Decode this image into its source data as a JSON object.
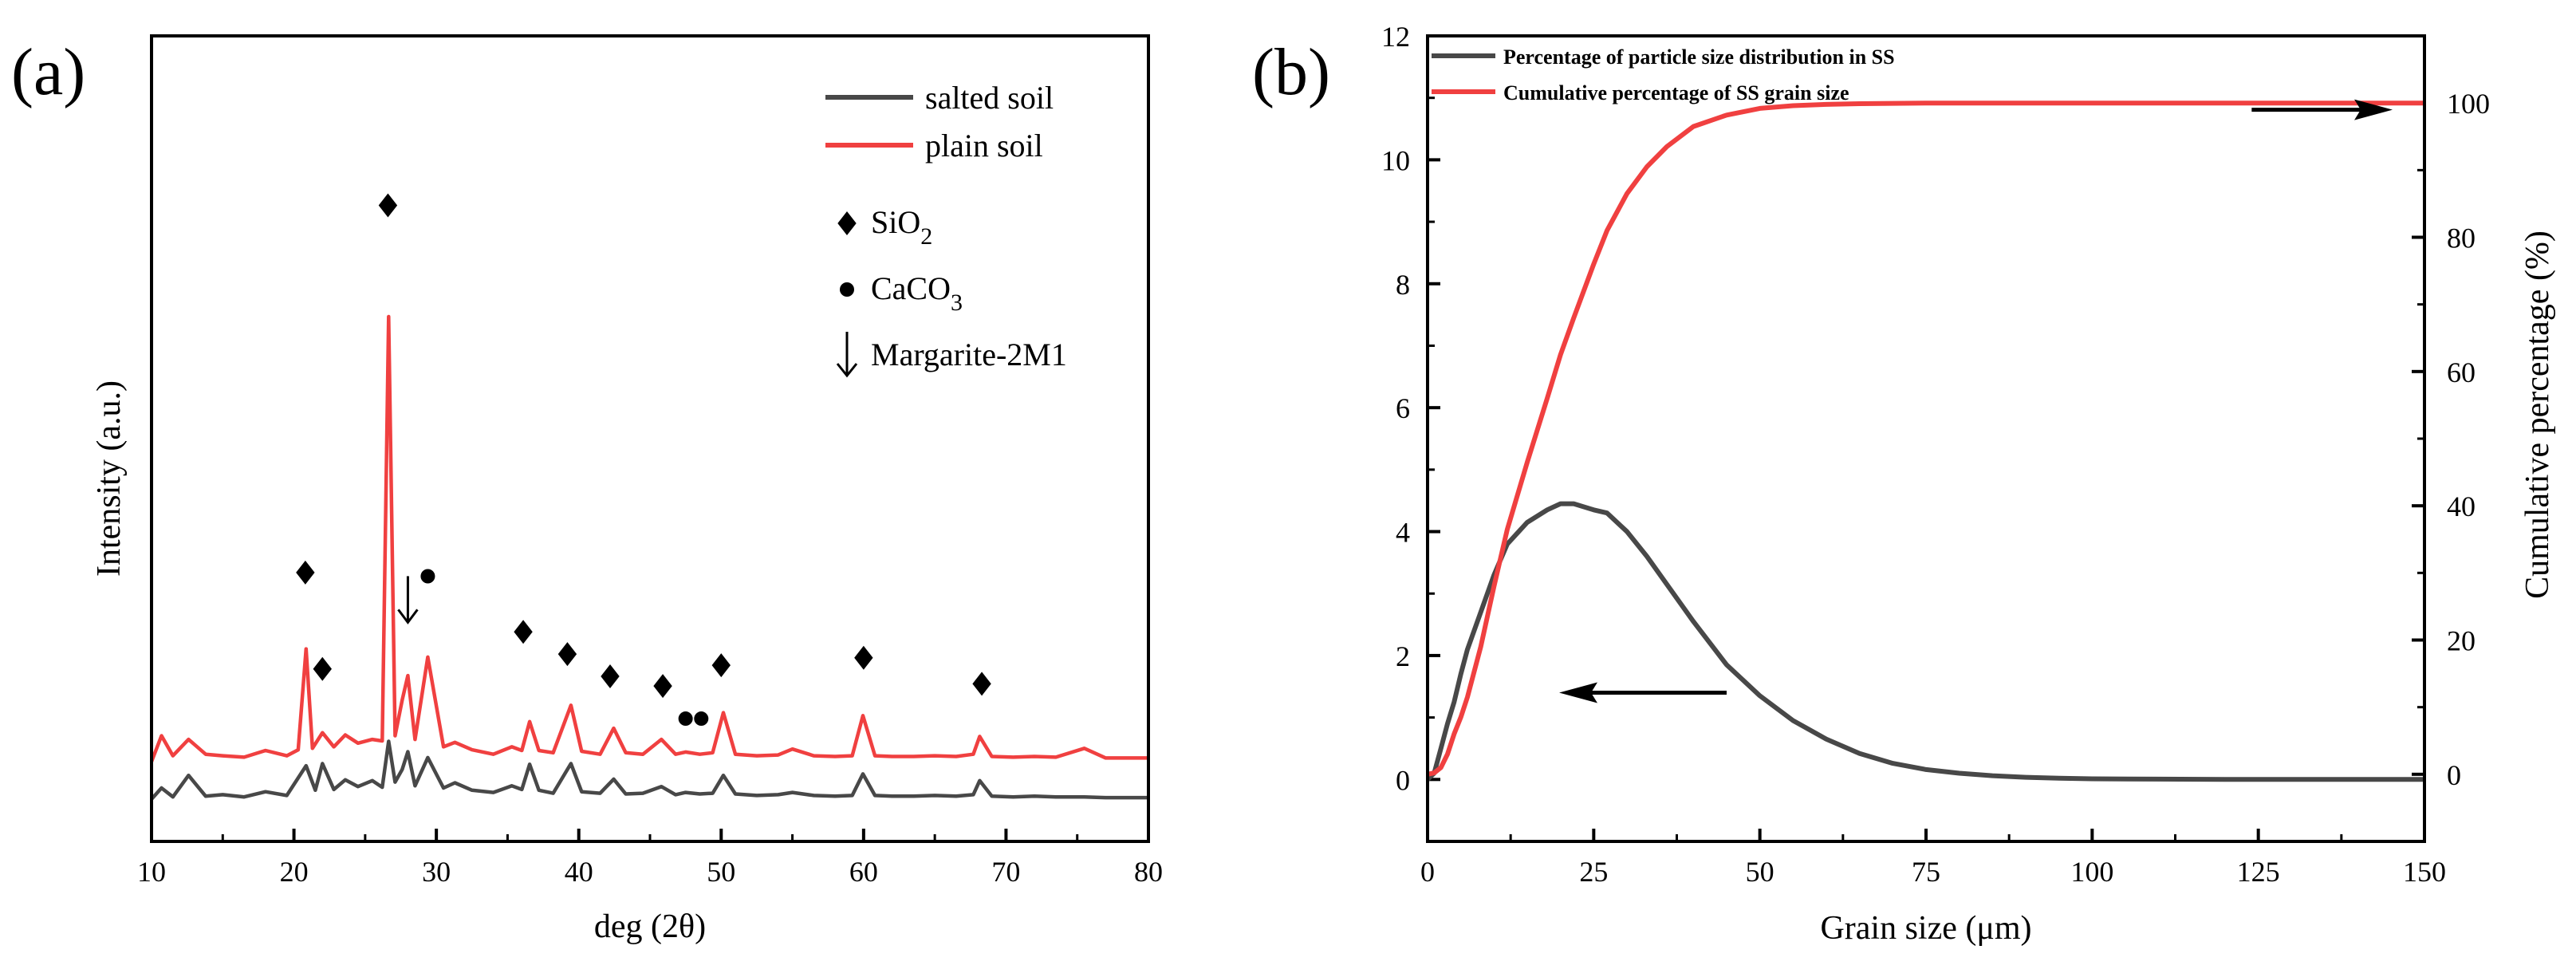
{
  "panels": {
    "a": {
      "label": "(a)"
    },
    "b": {
      "label": "(b)"
    }
  },
  "colors": {
    "salted": "#484848",
    "plain": "#f04040",
    "axis": "#000000"
  },
  "chart_data": [
    {
      "id": "a",
      "type": "line",
      "title": "",
      "xlabel": "deg (2θ)",
      "ylabel": "Intensity (a.u.)",
      "xlim": [
        10,
        80
      ],
      "xticks": [
        10,
        20,
        30,
        40,
        50,
        60,
        70,
        80
      ],
      "yticks": [],
      "series": [
        {
          "name": "salted soil",
          "color": "#484848",
          "x": [
            10,
            10.7,
            11.5,
            12.6,
            13.8,
            15,
            16.5,
            18,
            19.5,
            20.85,
            21.5,
            22.0,
            22.8,
            23.6,
            24.5,
            25.5,
            26.2,
            26.65,
            27.1,
            27.6,
            28.0,
            28.5,
            29.4,
            30.5,
            31.3,
            32.5,
            34,
            35.3,
            36.0,
            36.55,
            37.2,
            38.2,
            39.45,
            40.2,
            41.5,
            42.45,
            43.3,
            44.5,
            45.8,
            46.8,
            47.5,
            48.5,
            49.4,
            50.15,
            51.0,
            52.5,
            54.0,
            55.0,
            56.5,
            58.0,
            59.2,
            59.95,
            60.8,
            62.0,
            63.5,
            65,
            66.5,
            67.7,
            68.15,
            69.0,
            70.5,
            72,
            73.5,
            75.5,
            77,
            78.5,
            80
          ],
          "y": [
            0,
            1.5,
            0.3,
            3.2,
            0.4,
            0.6,
            0.3,
            1.0,
            0.5,
            4.5,
            1.2,
            4.8,
            1.3,
            2.6,
            1.7,
            2.5,
            1.6,
            7.8,
            2.3,
            4.0,
            6.4,
            1.8,
            5.6,
            1.5,
            2.2,
            1.2,
            0.9,
            1.8,
            1.3,
            4.7,
            1.2,
            0.8,
            4.8,
            1.0,
            0.8,
            2.7,
            0.7,
            0.8,
            1.7,
            0.6,
            0.9,
            0.7,
            0.8,
            3.2,
            0.7,
            0.5,
            0.6,
            0.9,
            0.5,
            0.4,
            0.5,
            3.4,
            0.5,
            0.4,
            0.4,
            0.5,
            0.4,
            0.6,
            2.5,
            0.4,
            0.3,
            0.4,
            0.3,
            0.3,
            0.2,
            0.2,
            0.2
          ]
        },
        {
          "name": "plain soil",
          "color": "#f04040",
          "x": [
            10,
            10.7,
            11.5,
            12.6,
            13.8,
            15,
            16.5,
            18,
            19.5,
            20.3,
            20.85,
            21.3,
            22.0,
            22.8,
            23.6,
            24.5,
            25.5,
            26.2,
            26.65,
            27.1,
            27.6,
            28.0,
            28.5,
            29.4,
            30.5,
            31.3,
            32.5,
            34,
            35.3,
            36.0,
            36.55,
            37.2,
            38.2,
            39.45,
            40.2,
            41.5,
            42.45,
            43.3,
            44.5,
            45.8,
            46.8,
            47.5,
            48.5,
            49.4,
            50.15,
            51.0,
            52.5,
            54.0,
            55.0,
            56.5,
            58.0,
            59.2,
            59.95,
            60.8,
            62.0,
            63.5,
            65,
            66.5,
            67.7,
            68.15,
            69.0,
            70.5,
            72,
            73.5,
            75.5,
            77,
            78.5,
            80
          ],
          "y": [
            0,
            3.5,
            0.8,
            3.0,
            1.0,
            0.8,
            0.6,
            1.5,
            0.8,
            1.6,
            15.2,
            1.8,
            3.9,
            2.0,
            3.6,
            2.5,
            3.0,
            2.8,
            60.0,
            3.5,
            8.3,
            11.6,
            3.0,
            14.1,
            2.0,
            2.6,
            1.6,
            1.0,
            2.0,
            1.5,
            5.4,
            1.5,
            1.2,
            7.6,
            1.4,
            1.0,
            4.5,
            1.2,
            1.0,
            3.0,
            1.0,
            1.3,
            1.0,
            1.2,
            6.6,
            1.0,
            0.8,
            0.9,
            1.7,
            0.8,
            0.7,
            0.8,
            6.2,
            0.8,
            0.7,
            0.7,
            0.8,
            0.7,
            1.0,
            3.4,
            0.7,
            0.6,
            0.7,
            0.6,
            1.8,
            0.5,
            0.5,
            0.5
          ]
        }
      ],
      "legend": {
        "position": "top-right",
        "entries": [
          "salted soil",
          "plain soil"
        ]
      },
      "phase_legend": [
        {
          "marker": "diamond",
          "base": "SiO",
          "sub": "2"
        },
        {
          "marker": "circle",
          "base": "CaCO",
          "sub": "3"
        },
        {
          "marker": "arrow",
          "base": "Margarite-2M1",
          "sub": ""
        }
      ],
      "annotations": [
        {
          "marker": "diamond",
          "x": 20.8,
          "y": 25.5
        },
        {
          "marker": "diamond",
          "x": 22.0,
          "y": 12.5
        },
        {
          "marker": "diamond",
          "x": 26.6,
          "y": 75.0
        },
        {
          "marker": "arrow",
          "x": 28.0,
          "y": 22.0
        },
        {
          "marker": "circle",
          "x": 29.4,
          "y": 25.0
        },
        {
          "marker": "diamond",
          "x": 36.1,
          "y": 17.5
        },
        {
          "marker": "diamond",
          "x": 39.2,
          "y": 14.5
        },
        {
          "marker": "diamond",
          "x": 42.2,
          "y": 11.5
        },
        {
          "marker": "diamond",
          "x": 45.9,
          "y": 10.2
        },
        {
          "marker": "circle",
          "x": 47.5,
          "y": 5.8
        },
        {
          "marker": "circle",
          "x": 48.6,
          "y": 5.8
        },
        {
          "marker": "diamond",
          "x": 50.0,
          "y": 13.0
        },
        {
          "marker": "diamond",
          "x": 60.0,
          "y": 14.0
        },
        {
          "marker": "diamond",
          "x": 68.3,
          "y": 10.5
        }
      ]
    },
    {
      "id": "b",
      "type": "line",
      "title": "",
      "xlabel": "Grain size (μm)",
      "ylabel": "",
      "y2label": "Cumulative percentage (%)",
      "xlim": [
        0,
        150
      ],
      "ylim": [
        -1,
        12
      ],
      "y2lim": [
        -10,
        110
      ],
      "xticks": [
        0,
        25,
        50,
        75,
        100,
        125,
        150
      ],
      "yticks": [
        0,
        2,
        4,
        6,
        8,
        10,
        12
      ],
      "y2ticks": [
        0,
        20,
        40,
        60,
        80,
        100
      ],
      "series": [
        {
          "name": "Percentage of particle size distribution in SS",
          "color": "#484848",
          "axis": "left",
          "x": [
            0,
            1,
            2,
            3,
            4,
            5,
            6,
            8,
            10,
            12,
            15,
            18,
            20,
            22,
            25,
            27,
            30,
            33,
            36,
            40,
            45,
            50,
            55,
            60,
            65,
            70,
            75,
            80,
            85,
            90,
            95,
            100,
            110,
            120,
            130,
            140,
            150
          ],
          "y": [
            0,
            0.1,
            0.5,
            0.9,
            1.25,
            1.7,
            2.1,
            2.7,
            3.3,
            3.8,
            4.15,
            4.35,
            4.45,
            4.45,
            4.35,
            4.3,
            4.0,
            3.6,
            3.15,
            2.55,
            1.85,
            1.35,
            0.95,
            0.65,
            0.42,
            0.26,
            0.16,
            0.1,
            0.06,
            0.035,
            0.02,
            0.01,
            0.005,
            0,
            0,
            0,
            0
          ]
        },
        {
          "name": "Cumulative percentage of SS grain size",
          "color": "#f04040",
          "axis": "right",
          "x": [
            0,
            1,
            2,
            3,
            4,
            5,
            6,
            8,
            10,
            12,
            15,
            18,
            20,
            22,
            25,
            27,
            30,
            33,
            36,
            40,
            45,
            50,
            55,
            60,
            65,
            70,
            75,
            80,
            85,
            90,
            95,
            100,
            110,
            120,
            130,
            140,
            150
          ],
          "y": [
            0,
            0.2,
            1,
            3,
            6,
            8.5,
            11.5,
            19,
            28,
            36.5,
            46.5,
            56,
            62.5,
            68,
            76,
            81,
            86.5,
            90.5,
            93.5,
            96.5,
            98.2,
            99.2,
            99.6,
            99.8,
            99.9,
            99.95,
            100,
            100,
            100,
            100,
            100,
            100,
            100,
            100,
            100,
            100,
            100
          ]
        }
      ],
      "legend": {
        "position": "top-left",
        "entries": [
          "Percentage of particle size distribution in SS",
          "Cumulative percentage of SS grain size"
        ]
      },
      "arrows": [
        {
          "direction": "left",
          "axis": "left",
          "x_from": 45,
          "x_to": 21,
          "y": 1.4
        },
        {
          "direction": "right",
          "axis": "right",
          "x_from": 124,
          "x_to": 144,
          "y": 99
        }
      ]
    }
  ]
}
